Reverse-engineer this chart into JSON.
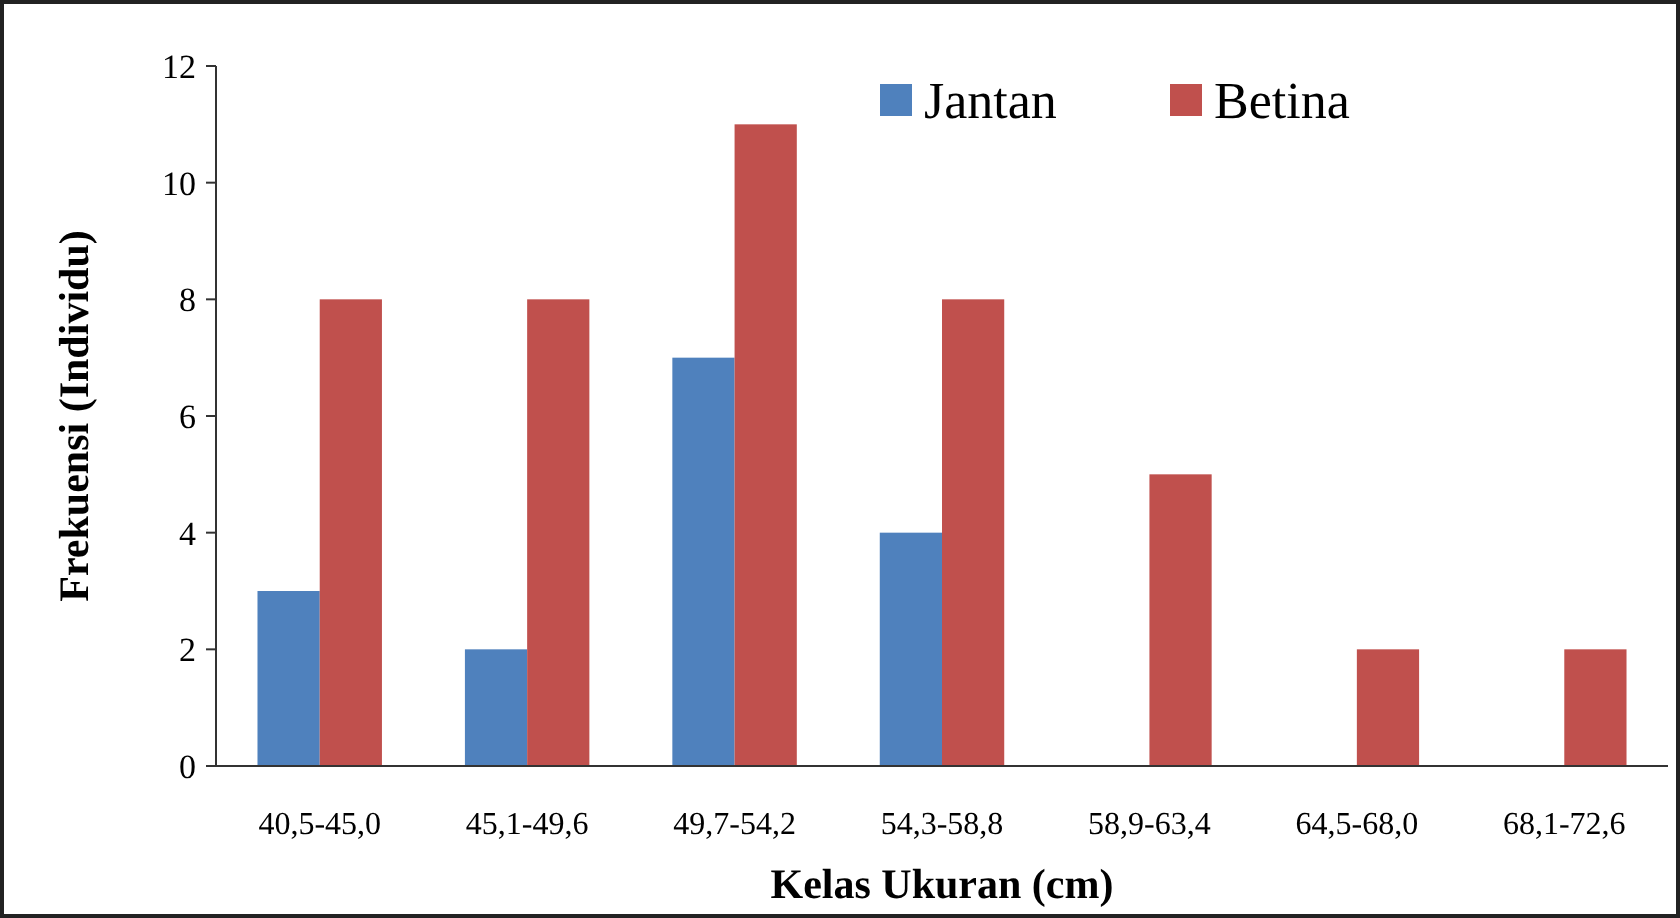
{
  "chart_data": {
    "type": "bar",
    "xlabel": "Kelas Ukuran (cm)",
    "ylabel": "Frekuensi (Individu)",
    "categories": [
      "40,5-45,0",
      "45,1-49,6",
      "49,7-54,2",
      "54,3-58,8",
      "58,9-63,4",
      "64,5-68,0",
      "68,1-72,6"
    ],
    "series": [
      {
        "name": "Jantan",
        "color": "#4f81bd",
        "values": [
          3,
          2,
          7,
          4,
          0,
          0,
          0
        ]
      },
      {
        "name": "Betina",
        "color": "#c0504d",
        "values": [
          8,
          8,
          11,
          8,
          5,
          2,
          2
        ]
      }
    ],
    "ylim": [
      0,
      12
    ],
    "yticks": [
      0,
      2,
      4,
      6,
      8,
      10,
      12
    ],
    "legend": "top right",
    "grid": false
  }
}
